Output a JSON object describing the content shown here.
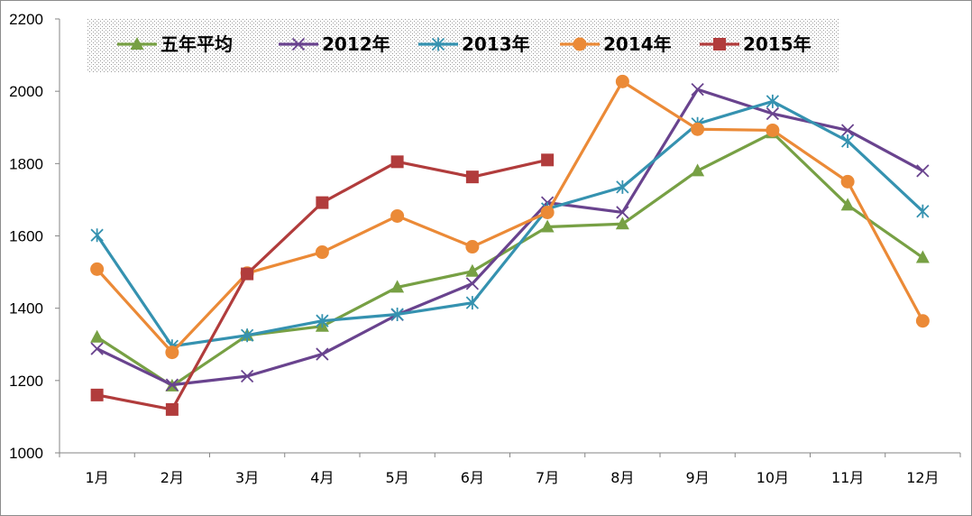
{
  "chart_data": {
    "type": "line",
    "title": "",
    "xlabel": "",
    "ylabel": "",
    "ylim": [
      1000,
      2200
    ],
    "yticks": [
      1000,
      1200,
      1400,
      1600,
      1800,
      2000,
      2200
    ],
    "grid": false,
    "legend_position": "top",
    "categories": [
      "1月",
      "2月",
      "3月",
      "4月",
      "5月",
      "6月",
      "7月",
      "8月",
      "9月",
      "10月",
      "11月",
      "12月"
    ],
    "series": [
      {
        "name": "五年平均",
        "color": "#77A044",
        "marker": "triangle",
        "values": [
          1320,
          1185,
          1325,
          1350,
          1458,
          1502,
          1625,
          1633,
          1780,
          1885,
          1685,
          1540
        ]
      },
      {
        "name": "2012年",
        "color": "#69438E",
        "marker": "x",
        "values": [
          1288,
          1188,
          1212,
          1273,
          1382,
          1468,
          1692,
          1665,
          2005,
          1938,
          1892,
          1780
        ]
      },
      {
        "name": "2013年",
        "color": "#3592B0",
        "marker": "star",
        "values": [
          1602,
          1295,
          1325,
          1365,
          1383,
          1415,
          1675,
          1735,
          1910,
          1972,
          1862,
          1668
        ]
      },
      {
        "name": "2014年",
        "color": "#EB8A37",
        "marker": "circle",
        "values": [
          1508,
          1278,
          1497,
          1555,
          1655,
          1570,
          1665,
          2027,
          1895,
          1892,
          1750,
          1365
        ]
      },
      {
        "name": "2015年",
        "color": "#B13C3C",
        "marker": "square",
        "values": [
          1160,
          1120,
          1495,
          1692,
          1805,
          1763,
          1810,
          null,
          null,
          null,
          null,
          null
        ]
      }
    ]
  }
}
